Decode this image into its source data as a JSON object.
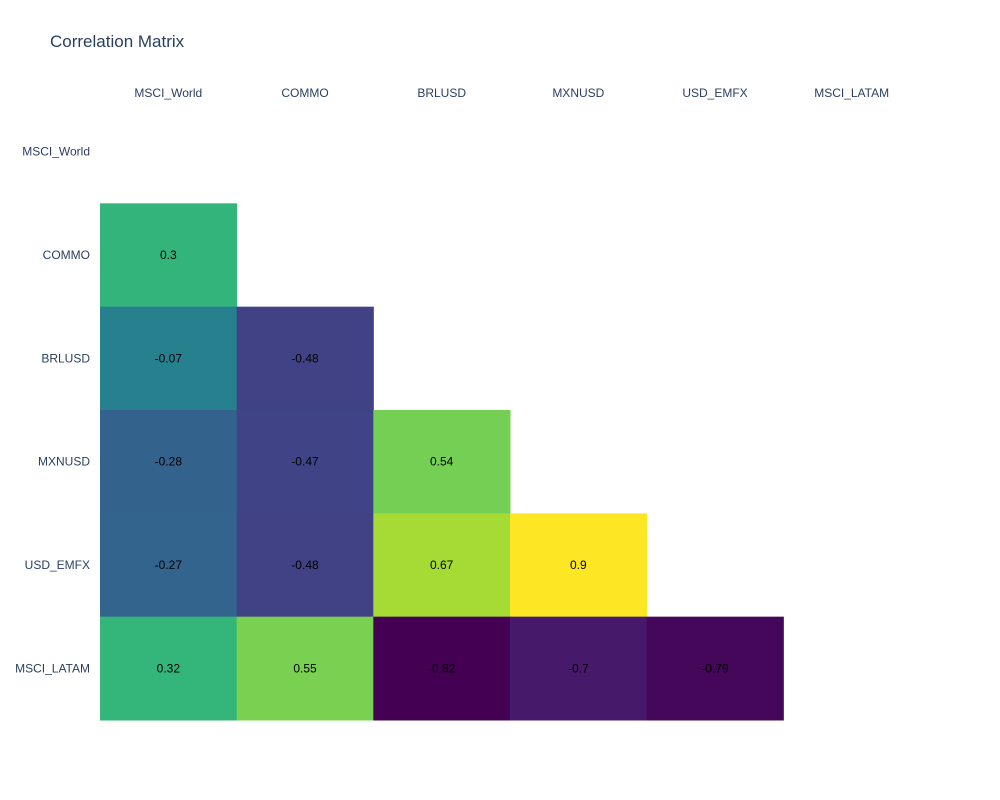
{
  "chart_data": {
    "type": "heatmap",
    "title": "Correlation Matrix",
    "x": [
      "MSCI_World",
      "COMMO",
      "BRLUSD",
      "MXNUSD",
      "USD_EMFX",
      "MSCI_LATAM"
    ],
    "y": [
      "MSCI_World",
      "COMMO",
      "BRLUSD",
      "MXNUSD",
      "USD_EMFX",
      "MSCI_LATAM"
    ],
    "z": [
      [
        null,
        null,
        null,
        null,
        null,
        null
      ],
      [
        0.3,
        null,
        null,
        null,
        null,
        null
      ],
      [
        -0.07,
        -0.48,
        null,
        null,
        null,
        null
      ],
      [
        -0.28,
        -0.47,
        0.54,
        null,
        null,
        null
      ],
      [
        -0.27,
        -0.48,
        0.67,
        0.9,
        null,
        null
      ],
      [
        0.32,
        0.55,
        -0.82,
        -0.7,
        -0.79,
        null
      ]
    ],
    "zmin": -0.82,
    "zmax": 0.9,
    "colorscale": "Viridis",
    "show_colorbar": false,
    "x_axis_position": "top",
    "grid": false
  }
}
